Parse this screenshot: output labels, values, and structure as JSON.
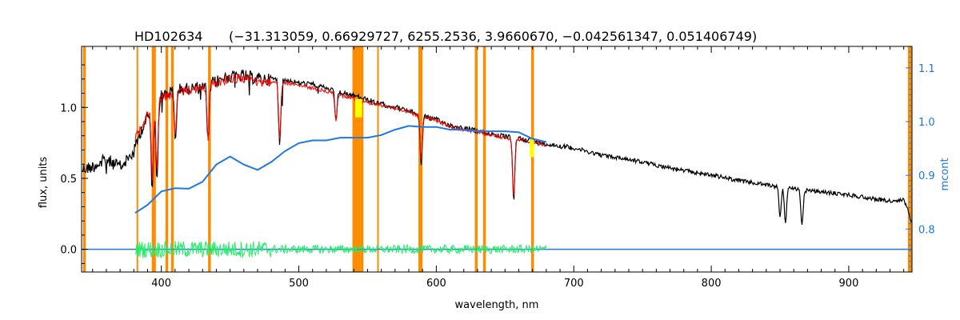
{
  "chart_data": {
    "type": "line",
    "title": "HD102634",
    "subtitle": "(−31.313059, 0.66929727, 6255.2536, 3.9660670, −0.042561347, 0.051406749)",
    "xlabel": "wavelength, nm",
    "ylabel": "flux, units",
    "y2label": "mcont",
    "xlim": [
      342,
      946
    ],
    "ylim": [
      -0.16,
      1.43
    ],
    "y2lim": [
      0.72,
      1.14
    ],
    "x_ticks": [
      "400",
      "500",
      "600",
      "700",
      "800",
      "900"
    ],
    "x_tick_values": [
      400,
      500,
      600,
      700,
      800,
      900
    ],
    "y_ticks": [
      "0.0",
      "0.5",
      "1.0"
    ],
    "y_tick_values": [
      0.0,
      0.5,
      1.0
    ],
    "y2_ticks": [
      "0.8",
      "0.9",
      "1.0",
      "1.1"
    ],
    "y2_tick_values": [
      0.8,
      0.9,
      1.0,
      1.1
    ],
    "masked_regions": [
      [
        343,
        345
      ],
      [
        382,
        383
      ],
      [
        393,
        396
      ],
      [
        403,
        405
      ],
      [
        407,
        409
      ],
      [
        434,
        436
      ],
      [
        539,
        545
      ],
      [
        545,
        547
      ],
      [
        557,
        558
      ],
      [
        587,
        590
      ],
      [
        628,
        630
      ],
      [
        634,
        636
      ],
      [
        669,
        671
      ],
      [
        943,
        946
      ]
    ],
    "series": [
      {
        "role": "observed",
        "color": "#000000",
        "x": [
          342,
          350,
          360,
          370,
          380,
          385,
          390,
          395,
          400,
          410,
          420,
          430,
          440,
          450,
          460,
          470,
          480,
          490,
          500,
          510,
          520,
          530,
          540,
          550,
          560,
          570,
          580,
          590,
          600,
          610,
          620,
          630,
          640,
          650,
          660,
          670,
          680,
          700,
          720,
          740,
          760,
          780,
          800,
          820,
          840,
          860,
          880,
          900,
          920,
          935,
          940,
          946
        ],
        "y": [
          0.58,
          0.6,
          0.65,
          0.6,
          0.7,
          0.85,
          0.95,
          1.02,
          1.1,
          1.14,
          1.15,
          1.16,
          1.2,
          1.24,
          1.24,
          1.22,
          1.21,
          1.2,
          1.18,
          1.17,
          1.14,
          1.11,
          1.09,
          1.06,
          1.03,
          1.01,
          0.98,
          0.95,
          0.92,
          0.88,
          0.86,
          0.84,
          0.82,
          0.8,
          0.79,
          0.77,
          0.75,
          0.72,
          0.67,
          0.64,
          0.6,
          0.56,
          0.53,
          0.49,
          0.46,
          0.43,
          0.41,
          0.39,
          0.36,
          0.34,
          0.36,
          0.2
        ]
      },
      {
        "role": "model",
        "color": "#ff0000",
        "x": [
          381,
          390,
          400,
          410,
          420,
          430,
          440,
          450,
          460,
          470,
          480,
          490,
          500,
          510,
          520,
          530,
          540,
          550,
          560,
          570,
          580,
          590,
          600,
          610,
          620,
          630,
          640,
          650,
          660,
          670,
          680
        ],
        "y": [
          0.8,
          0.98,
          1.08,
          1.12,
          1.14,
          1.15,
          1.19,
          1.22,
          1.22,
          1.2,
          1.19,
          1.18,
          1.16,
          1.14,
          1.12,
          1.09,
          1.07,
          1.04,
          1.02,
          1.0,
          0.97,
          0.94,
          0.91,
          0.87,
          0.85,
          0.83,
          0.81,
          0.79,
          0.78,
          0.76,
          0.74
        ]
      },
      {
        "role": "mcont",
        "axis": "right",
        "color": "#1e78e6",
        "x": [
          381,
          390,
          400,
          410,
          420,
          430,
          440,
          450,
          460,
          470,
          480,
          490,
          500,
          510,
          520,
          530,
          540,
          550,
          560,
          570,
          580,
          590,
          600,
          610,
          620,
          630,
          640,
          650,
          660,
          670,
          680
        ],
        "y": [
          0.83,
          0.845,
          0.87,
          0.876,
          0.875,
          0.888,
          0.92,
          0.935,
          0.92,
          0.91,
          0.925,
          0.945,
          0.96,
          0.965,
          0.965,
          0.97,
          0.97,
          0.97,
          0.975,
          0.985,
          0.992,
          0.99,
          0.99,
          0.985,
          0.985,
          0.982,
          0.982,
          0.982,
          0.98,
          0.968,
          0.962
        ]
      },
      {
        "role": "residuals",
        "color": "#22ee66",
        "x": [
          381,
          680
        ],
        "y": [
          0.0,
          0.0
        ]
      },
      {
        "role": "zero-line",
        "color": "#1e78e6",
        "x": [
          342,
          946
        ],
        "y": [
          0.0,
          0.0
        ]
      }
    ],
    "grid": false,
    "colors": {
      "axes": "#000000",
      "right_axis": "#1e78e6",
      "mask": "#ff8c00",
      "highlight": "#ffff00"
    }
  }
}
